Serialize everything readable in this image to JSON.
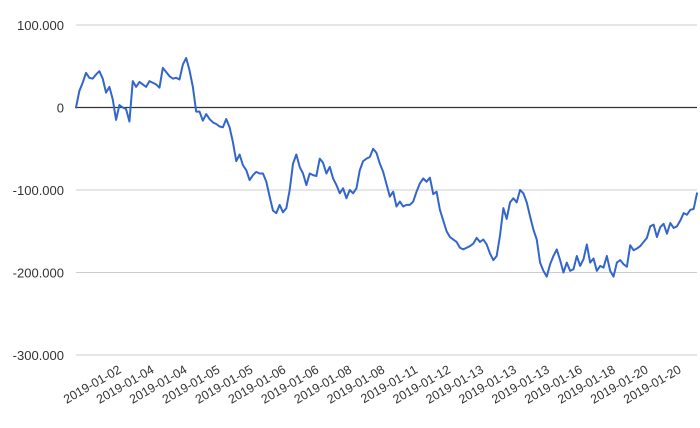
{
  "chart_data": {
    "type": "line",
    "title": "",
    "xlabel": "",
    "ylabel": "",
    "ylim": [
      -300000,
      100000
    ],
    "y_ticks": [
      100000,
      0,
      -100000,
      -200000,
      -300000
    ],
    "y_tick_labels": [
      "100.000",
      "0",
      "-100.000",
      "-200.000",
      "-300.000"
    ],
    "x_tick_labels": [
      "2019-01-02",
      "2019-01-04",
      "2019-01-04",
      "2019-01-05",
      "2019-01-05",
      "2019-01-06",
      "2019-01-06",
      "2019-01-08",
      "2019-01-08",
      "2019-01-11",
      "2019-01-12",
      "2019-01-13",
      "2019-01-13",
      "2019-01-13",
      "2019-01-16",
      "2019-01-18",
      "2019-01-20",
      "2019-01-20"
    ],
    "grid": true,
    "legend": "none",
    "colors": {
      "line": "#3366cc",
      "grid": "#cccccc",
      "zero_line": "#333333",
      "text": "#333333"
    },
    "series": [
      {
        "values": [
          0,
          20000,
          30000,
          42000,
          36000,
          35000,
          40000,
          44000,
          35000,
          18000,
          25000,
          10000,
          -15000,
          3000,
          0,
          -2000,
          -17000,
          32000,
          25000,
          31000,
          28000,
          25000,
          32000,
          30000,
          28000,
          24000,
          48000,
          43000,
          38000,
          35000,
          36000,
          34000,
          52000,
          60000,
          45000,
          25000,
          -5000,
          -5000,
          -16000,
          -8000,
          -14000,
          -18000,
          -20000,
          -23000,
          -24000,
          -14000,
          -24000,
          -42000,
          -65000,
          -57000,
          -70000,
          -76000,
          -88000,
          -82000,
          -78000,
          -80000,
          -80000,
          -90000,
          -108000,
          -125000,
          -128000,
          -118000,
          -127000,
          -122000,
          -100000,
          -68000,
          -57000,
          -72000,
          -80000,
          -94000,
          -80000,
          -82000,
          -83000,
          -62000,
          -67000,
          -80000,
          -72000,
          -86000,
          -94000,
          -104000,
          -98000,
          -110000,
          -100000,
          -104000,
          -98000,
          -76000,
          -65000,
          -62000,
          -60000,
          -50000,
          -55000,
          -68000,
          -78000,
          -93000,
          -108000,
          -102000,
          -120000,
          -114000,
          -120000,
          -118000,
          -118000,
          -114000,
          -102000,
          -92000,
          -86000,
          -90000,
          -85000,
          -105000,
          -102000,
          -124000,
          -137000,
          -150000,
          -157000,
          -160000,
          -163000,
          -170000,
          -172000,
          -170000,
          -168000,
          -165000,
          -158000,
          -163000,
          -160000,
          -166000,
          -177000,
          -185000,
          -180000,
          -155000,
          -122000,
          -135000,
          -115000,
          -110000,
          -115000,
          -100000,
          -104000,
          -115000,
          -132000,
          -148000,
          -160000,
          -188000,
          -198000,
          -205000,
          -190000,
          -180000,
          -172000,
          -185000,
          -200000,
          -188000,
          -198000,
          -196000,
          -180000,
          -192000,
          -184000,
          -166000,
          -188000,
          -183000,
          -198000,
          -192000,
          -194000,
          -180000,
          -198000,
          -205000,
          -188000,
          -185000,
          -190000,
          -193000,
          -167000,
          -173000,
          -171000,
          -168000,
          -163000,
          -158000,
          -144000,
          -142000,
          -157000,
          -145000,
          -141000,
          -153000,
          -140000,
          -146000,
          -144000,
          -137000,
          -128000,
          -130000,
          -124000,
          -123000,
          -104000
        ]
      }
    ]
  }
}
